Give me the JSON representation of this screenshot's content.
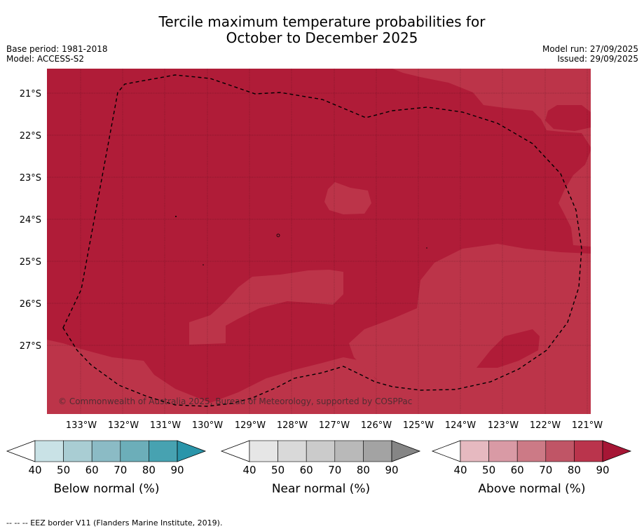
{
  "header": {
    "title_line1": "Tercile maximum temperature probabilities for",
    "title_line2": "October to December 2025",
    "base_period": "Base period: 1981-2018",
    "model": "Model: ACCESS-S2",
    "model_run": "Model run: 27/09/2025",
    "issued": "Issued: 29/09/2025"
  },
  "map": {
    "latitude_labels": [
      "21°S",
      "22°S",
      "23°S",
      "24°S",
      "25°S",
      "26°S",
      "27°S"
    ],
    "longitude_labels": [
      "133°W",
      "132°W",
      "131°W",
      "130°W",
      "129°W",
      "128°W",
      "127°W",
      "126°W",
      "125°W",
      "124°W",
      "123°W",
      "122°W",
      "121°W"
    ],
    "copyright": "© Commonwealth of Australia 2025, Bureau of Meteorology, supported by COSPPac",
    "colors": {
      "above_80": "#b01c38",
      "above_70": "#bc3449",
      "eez": "#000000"
    }
  },
  "legends": [
    {
      "label": "Below normal (%)",
      "ticks": [
        "40",
        "50",
        "60",
        "70",
        "80",
        "90"
      ],
      "colors": [
        "#ffffff",
        "#c9e2e6",
        "#a9cdd3",
        "#8bbbc5",
        "#6caeb9",
        "#47a2b1",
        "#2a95aa"
      ]
    },
    {
      "label": "Near normal (%)",
      "ticks": [
        "40",
        "50",
        "60",
        "70",
        "80",
        "90"
      ],
      "colors": [
        "#ffffff",
        "#e6e6e6",
        "#d9d9d9",
        "#cbcbcb",
        "#b9b9b9",
        "#a3a3a3",
        "#858585"
      ]
    },
    {
      "label": "Above normal (%)",
      "ticks": [
        "40",
        "50",
        "60",
        "70",
        "80",
        "90"
      ],
      "colors": [
        "#ffffff",
        "#e6b9c0",
        "#d99aa5",
        "#cc7a86",
        "#c05566",
        "#ba344c",
        "#a61635"
      ]
    }
  ],
  "footer": "--  --  -- EEZ border V11 (Flanders Marine Institute, 2019)."
}
